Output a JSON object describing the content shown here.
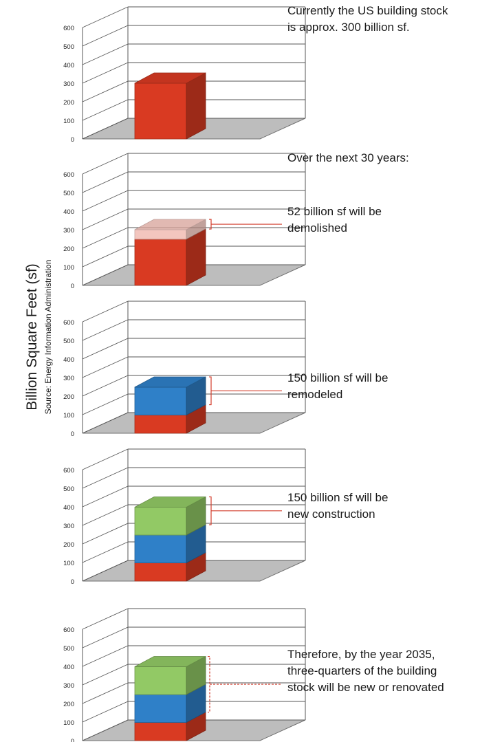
{
  "y_axis": {
    "label": "Billion Square Feet (sf)",
    "source": "Source: Energy Information Administration"
  },
  "annotations": [
    {
      "text": "Currently the US building stock\nis approx. 300 billion sf."
    },
    {
      "text": "Over the next 30 years:"
    },
    {
      "text": "52 billion sf will be\ndemolished"
    },
    {
      "text": "150 billion sf will be\nremodeled"
    },
    {
      "text": "150 billion sf will be\nnew construction"
    },
    {
      "text": "Therefore, by the year 2035,\nthree-quarters of the building\nstock will be new or renovated"
    }
  ],
  "colors": {
    "existing": "#d93a22",
    "remodeled": "#2f80c8",
    "new": "#92c965",
    "demolished": "#f0b4aa",
    "floor": "#bdbdbd",
    "bracket": "#d23b2a"
  },
  "chart_data": [
    {
      "type": "bar",
      "ylim": [
        0,
        600
      ],
      "yticks": [
        0,
        100,
        200,
        300,
        400,
        500,
        600
      ],
      "stack": [
        {
          "name": "existing",
          "from": 0,
          "to": 300
        }
      ]
    },
    {
      "type": "bar",
      "ylim": [
        0,
        600
      ],
      "yticks": [
        0,
        100,
        200,
        300,
        400,
        500,
        600
      ],
      "stack": [
        {
          "name": "existing",
          "from": 0,
          "to": 248
        },
        {
          "name": "demolished",
          "from": 248,
          "to": 300
        }
      ]
    },
    {
      "type": "bar",
      "ylim": [
        0,
        600
      ],
      "yticks": [
        0,
        100,
        200,
        300,
        400,
        500,
        600
      ],
      "stack": [
        {
          "name": "existing",
          "from": 0,
          "to": 98
        },
        {
          "name": "remodeled",
          "from": 98,
          "to": 248
        }
      ]
    },
    {
      "type": "bar",
      "ylim": [
        0,
        600
      ],
      "yticks": [
        0,
        100,
        200,
        300,
        400,
        500,
        600
      ],
      "stack": [
        {
          "name": "existing",
          "from": 0,
          "to": 98
        },
        {
          "name": "remodeled",
          "from": 98,
          "to": 248
        },
        {
          "name": "new",
          "from": 248,
          "to": 398
        }
      ]
    },
    {
      "type": "bar",
      "ylim": [
        0,
        600
      ],
      "yticks": [
        0,
        100,
        200,
        300,
        400,
        500,
        600
      ],
      "stack": [
        {
          "name": "existing",
          "from": 0,
          "to": 98
        },
        {
          "name": "remodeled",
          "from": 98,
          "to": 248
        },
        {
          "name": "new",
          "from": 248,
          "to": 398
        }
      ]
    }
  ]
}
